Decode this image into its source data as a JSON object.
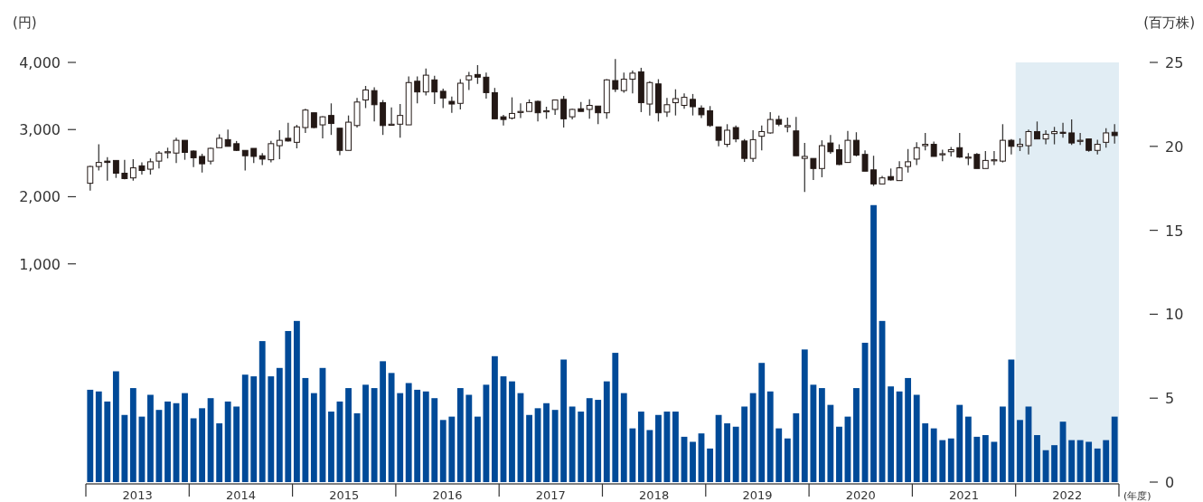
{
  "chart_data": {
    "type": "candlestick",
    "ylabel": "(円)",
    "y2label": "(百万株)",
    "xlabel": "(年度)",
    "xlim": [
      2013,
      2023
    ],
    "xticks": [
      {
        "value": 2013,
        "label": null
      },
      {
        "value": 2013.5,
        "label": "2013"
      },
      {
        "value": 2014,
        "label": null
      },
      {
        "value": 2014.5,
        "label": "2014"
      },
      {
        "value": 2015,
        "label": null
      },
      {
        "value": 2015.5,
        "label": "2015"
      },
      {
        "value": 2016,
        "label": null
      },
      {
        "value": 2016.5,
        "label": "2016"
      },
      {
        "value": 2017,
        "label": null
      },
      {
        "value": 2017.5,
        "label": "2017"
      },
      {
        "value": 2018,
        "label": null
      },
      {
        "value": 2018.5,
        "label": "2018"
      },
      {
        "value": 2019,
        "label": null
      },
      {
        "value": 2019.5,
        "label": "2019"
      },
      {
        "value": 2020,
        "label": null
      },
      {
        "value": 2020.5,
        "label": "2020"
      },
      {
        "value": 2021,
        "label": null
      },
      {
        "value": 2021.5,
        "label": "2021"
      },
      {
        "value": 2022,
        "label": null
      },
      {
        "value": 2022.5,
        "label": "2022"
      },
      {
        "value": 2023,
        "label": null
      }
    ],
    "ylim": [
      -2250,
      4000
    ],
    "yticks": [
      {
        "value": 1000,
        "label": "1,000"
      },
      {
        "value": 2000,
        "label": "2,000"
      },
      {
        "value": 3000,
        "label": "3,000"
      },
      {
        "value": 4000,
        "label": "4,000"
      }
    ],
    "y2lim": [
      0,
      25
    ],
    "y2ticks": [
      0,
      5,
      10,
      15,
      20,
      25
    ],
    "bands": [
      {
        "axis": "x",
        "from": 2022,
        "to": 2023,
        "color": "#e1edf4"
      }
    ],
    "x": [
      2013.042,
      2013.125,
      2013.208,
      2013.292,
      2013.375,
      2013.458,
      2013.542,
      2013.625,
      2013.708,
      2013.792,
      2013.875,
      2013.958,
      2014.042,
      2014.125,
      2014.208,
      2014.292,
      2014.375,
      2014.458,
      2014.542,
      2014.625,
      2014.708,
      2014.792,
      2014.875,
      2014.958,
      2015.042,
      2015.125,
      2015.208,
      2015.292,
      2015.375,
      2015.458,
      2015.542,
      2015.625,
      2015.708,
      2015.792,
      2015.875,
      2015.958,
      2016.042,
      2016.125,
      2016.208,
      2016.292,
      2016.375,
      2016.458,
      2016.542,
      2016.625,
      2016.708,
      2016.792,
      2016.875,
      2016.958,
      2017.042,
      2017.125,
      2017.208,
      2017.292,
      2017.375,
      2017.458,
      2017.542,
      2017.625,
      2017.708,
      2017.792,
      2017.875,
      2017.958,
      2018.042,
      2018.125,
      2018.208,
      2018.292,
      2018.375,
      2018.458,
      2018.542,
      2018.625,
      2018.708,
      2018.792,
      2018.875,
      2018.958,
      2019.042,
      2019.125,
      2019.208,
      2019.292,
      2019.375,
      2019.458,
      2019.542,
      2019.625,
      2019.708,
      2019.792,
      2019.875,
      2019.958,
      2020.042,
      2020.125,
      2020.208,
      2020.292,
      2020.375,
      2020.458,
      2020.542,
      2020.625,
      2020.708,
      2020.792,
      2020.875,
      2020.958,
      2021.042,
      2021.125,
      2021.208,
      2021.292,
      2021.375,
      2021.458,
      2021.542,
      2021.625,
      2021.708,
      2021.792,
      2021.875,
      2021.958,
      2022.042,
      2022.125,
      2022.208,
      2022.292,
      2022.375,
      2022.458,
      2022.542,
      2022.625,
      2022.708,
      2022.792,
      2022.875,
      2022.958
    ],
    "ohlc": [
      [
        2200,
        2460,
        2090,
        2450
      ],
      [
        2450,
        2780,
        2390,
        2510
      ],
      [
        2530,
        2590,
        2240,
        2510
      ],
      [
        2540,
        2540,
        2280,
        2350
      ],
      [
        2350,
        2550,
        2260,
        2270
      ],
      [
        2280,
        2560,
        2240,
        2430
      ],
      [
        2460,
        2510,
        2330,
        2390
      ],
      [
        2410,
        2570,
        2330,
        2520
      ],
      [
        2530,
        2680,
        2420,
        2650
      ],
      [
        2660,
        2730,
        2570,
        2670
      ],
      [
        2650,
        2880,
        2500,
        2840
      ],
      [
        2840,
        2840,
        2550,
        2660
      ],
      [
        2680,
        2690,
        2440,
        2580
      ],
      [
        2600,
        2640,
        2360,
        2490
      ],
      [
        2530,
        2730,
        2480,
        2720
      ],
      [
        2730,
        2930,
        2730,
        2870
      ],
      [
        2850,
        3000,
        2750,
        2750
      ],
      [
        2790,
        2830,
        2680,
        2690
      ],
      [
        2690,
        2690,
        2390,
        2610
      ],
      [
        2720,
        2720,
        2500,
        2600
      ],
      [
        2610,
        2650,
        2470,
        2560
      ],
      [
        2550,
        2830,
        2510,
        2790
      ],
      [
        2760,
        2990,
        2560,
        2840
      ],
      [
        2870,
        3100,
        2820,
        2830
      ],
      [
        2810,
        3070,
        2720,
        3040
      ],
      [
        3030,
        3310,
        2950,
        3290
      ],
      [
        3250,
        3250,
        3020,
        3030
      ],
      [
        3070,
        3200,
        2870,
        3190
      ],
      [
        3210,
        3390,
        2920,
        3090
      ],
      [
        3020,
        3020,
        2620,
        2690
      ],
      [
        2690,
        3210,
        2690,
        3110
      ],
      [
        3060,
        3470,
        3030,
        3410
      ],
      [
        3440,
        3650,
        3320,
        3590
      ],
      [
        3580,
        3630,
        3120,
        3370
      ],
      [
        3400,
        3440,
        2920,
        3060
      ],
      [
        3070,
        3330,
        3070,
        3080
      ],
      [
        3080,
        3380,
        2880,
        3210
      ],
      [
        3070,
        3790,
        3070,
        3700
      ],
      [
        3720,
        3790,
        3390,
        3560
      ],
      [
        3560,
        3910,
        3510,
        3810
      ],
      [
        3740,
        3800,
        3380,
        3560
      ],
      [
        3570,
        3610,
        3320,
        3470
      ],
      [
        3420,
        3490,
        3250,
        3380
      ],
      [
        3390,
        3750,
        3300,
        3690
      ],
      [
        3740,
        3860,
        3590,
        3800
      ],
      [
        3820,
        3960,
        3680,
        3780
      ],
      [
        3780,
        3850,
        3460,
        3550
      ],
      [
        3550,
        3620,
        3160,
        3160
      ],
      [
        3190,
        3220,
        3060,
        3150
      ],
      [
        3170,
        3480,
        3150,
        3240
      ],
      [
        3260,
        3390,
        3170,
        3270
      ],
      [
        3270,
        3450,
        3270,
        3400
      ],
      [
        3420,
        3430,
        3120,
        3250
      ],
      [
        3270,
        3340,
        3160,
        3280
      ],
      [
        3300,
        3440,
        3220,
        3440
      ],
      [
        3450,
        3500,
        3030,
        3160
      ],
      [
        3190,
        3310,
        3150,
        3300
      ],
      [
        3310,
        3410,
        3270,
        3270
      ],
      [
        3300,
        3450,
        3160,
        3360
      ],
      [
        3350,
        3350,
        3080,
        3250
      ],
      [
        3250,
        3750,
        3160,
        3740
      ],
      [
        3730,
        4050,
        3560,
        3600
      ],
      [
        3580,
        3850,
        3550,
        3750
      ],
      [
        3750,
        3880,
        3540,
        3840
      ],
      [
        3860,
        3920,
        3260,
        3400
      ],
      [
        3380,
        3720,
        3210,
        3700
      ],
      [
        3680,
        3750,
        3120,
        3250
      ],
      [
        3260,
        3470,
        3190,
        3370
      ],
      [
        3400,
        3600,
        3210,
        3460
      ],
      [
        3360,
        3540,
        3310,
        3480
      ],
      [
        3450,
        3530,
        3210,
        3340
      ],
      [
        3320,
        3360,
        3170,
        3220
      ],
      [
        3280,
        3350,
        3040,
        3060
      ],
      [
        3040,
        3040,
        2750,
        2840
      ],
      [
        2780,
        3080,
        2740,
        2990
      ],
      [
        3030,
        3060,
        2810,
        2860
      ],
      [
        2830,
        2860,
        2520,
        2570
      ],
      [
        2570,
        2990,
        2520,
        2850
      ],
      [
        2900,
        3060,
        2690,
        2970
      ],
      [
        2950,
        3260,
        2940,
        3150
      ],
      [
        3150,
        3210,
        3050,
        3080
      ],
      [
        3040,
        3180,
        2960,
        3060
      ],
      [
        2980,
        3190,
        2610,
        2610
      ],
      [
        2570,
        2800,
        2070,
        2600
      ],
      [
        2570,
        2570,
        2250,
        2420
      ],
      [
        2420,
        2840,
        2290,
        2760
      ],
      [
        2800,
        2920,
        2640,
        2670
      ],
      [
        2700,
        2780,
        2470,
        2480
      ],
      [
        2510,
        2980,
        2510,
        2840
      ],
      [
        2840,
        2960,
        2600,
        2620
      ],
      [
        2630,
        2690,
        2380,
        2380
      ],
      [
        2400,
        2610,
        2160,
        2190
      ],
      [
        2190,
        2310,
        2190,
        2280
      ],
      [
        2300,
        2420,
        2240,
        2250
      ],
      [
        2240,
        2530,
        2240,
        2430
      ],
      [
        2450,
        2710,
        2360,
        2520
      ],
      [
        2560,
        2810,
        2470,
        2730
      ],
      [
        2760,
        2950,
        2690,
        2780
      ],
      [
        2780,
        2820,
        2600,
        2600
      ],
      [
        2630,
        2700,
        2530,
        2640
      ],
      [
        2670,
        2740,
        2600,
        2700
      ],
      [
        2730,
        2950,
        2580,
        2590
      ],
      [
        2580,
        2650,
        2470,
        2590
      ],
      [
        2630,
        2650,
        2420,
        2420
      ],
      [
        2420,
        2680,
        2420,
        2540
      ],
      [
        2540,
        2680,
        2470,
        2550
      ],
      [
        2530,
        3080,
        2510,
        2840
      ],
      [
        2840,
        2860,
        2630,
        2750
      ],
      [
        2750,
        2870,
        2680,
        2780
      ],
      [
        2760,
        3000,
        2630,
        2970
      ],
      [
        2970,
        3120,
        2860,
        2860
      ],
      [
        2860,
        2990,
        2780,
        2930
      ],
      [
        2940,
        3040,
        2780,
        2970
      ],
      [
        2960,
        3100,
        2880,
        2950
      ],
      [
        2950,
        3150,
        2770,
        2800
      ],
      [
        2830,
        2950,
        2770,
        2840
      ],
      [
        2860,
        2860,
        2670,
        2690
      ],
      [
        2690,
        2850,
        2630,
        2780
      ],
      [
        2810,
        3020,
        2730,
        2950
      ],
      [
        2960,
        3080,
        2790,
        2910
      ]
    ],
    "series": [
      {
        "type": "bar",
        "axis": "y2",
        "color": "#004a98",
        "values": [
          5.5,
          5.4,
          4.8,
          6.6,
          4.0,
          5.6,
          3.9,
          5.2,
          4.3,
          4.8,
          4.7,
          5.3,
          3.8,
          4.4,
          5.0,
          3.5,
          4.8,
          4.5,
          6.4,
          6.3,
          8.4,
          6.3,
          6.8,
          9.0,
          9.6,
          6.2,
          5.3,
          6.8,
          4.2,
          4.8,
          5.6,
          4.1,
          5.8,
          5.6,
          7.2,
          6.5,
          5.3,
          5.9,
          5.5,
          5.4,
          5.0,
          3.7,
          3.9,
          5.6,
          5.2,
          3.9,
          5.8,
          7.5,
          6.3,
          6.0,
          5.3,
          4.0,
          4.4,
          4.7,
          4.3,
          7.3,
          4.5,
          4.2,
          5.0,
          4.9,
          6.0,
          7.7,
          5.3,
          3.2,
          4.2,
          3.1,
          4.0,
          4.2,
          4.2,
          2.7,
          2.4,
          2.9,
          2.0,
          4.0,
          3.5,
          3.3,
          4.5,
          5.3,
          7.1,
          5.4,
          3.2,
          2.6,
          4.1,
          7.9,
          5.8,
          5.6,
          4.6,
          3.3,
          3.9,
          5.6,
          8.3,
          16.5,
          9.6,
          5.7,
          5.4,
          6.2,
          5.2,
          3.5,
          3.2,
          2.5,
          2.6,
          4.6,
          3.9,
          2.7,
          2.8,
          2.4,
          4.5,
          7.3,
          3.7,
          4.5,
          2.8,
          1.9,
          2.2,
          3.6,
          2.5,
          2.5,
          2.4,
          2.0,
          2.5,
          3.9
        ]
      }
    ]
  }
}
